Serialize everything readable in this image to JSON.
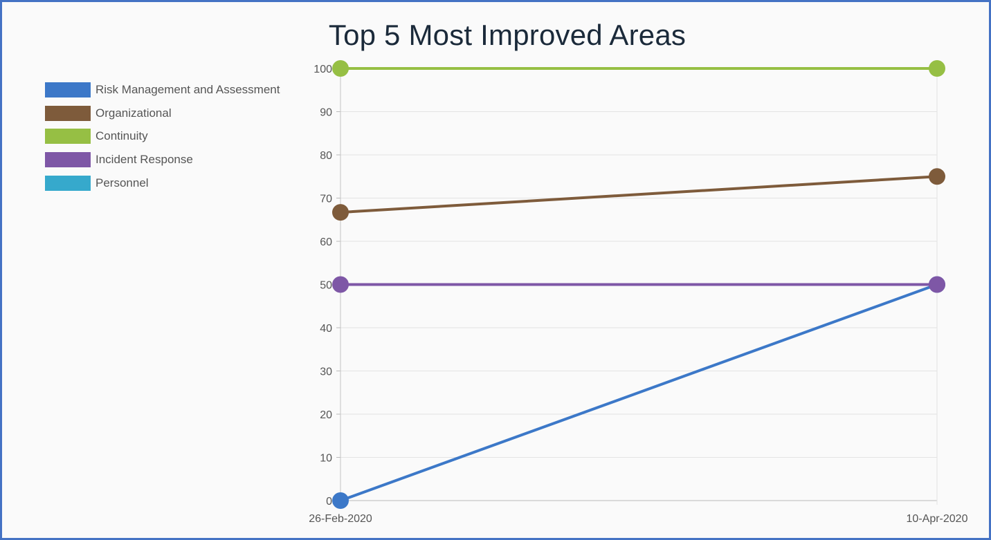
{
  "chart_data": {
    "type": "line",
    "title": "Top 5 Most Improved Areas",
    "x": [
      "26-Feb-2020",
      "10-Apr-2020"
    ],
    "xlabel": "",
    "ylabel": "",
    "ylim": [
      0,
      100
    ],
    "yticks": [
      0,
      10,
      20,
      30,
      40,
      50,
      60,
      70,
      80,
      90,
      100
    ],
    "grid": true,
    "legend_position": "left",
    "series": [
      {
        "name": "Risk Management and Assessment",
        "color": "#3c78c8",
        "values": [
          0,
          50
        ]
      },
      {
        "name": "Organizational",
        "color": "#7e5b3b",
        "values": [
          66.7,
          75
        ]
      },
      {
        "name": "Continuity",
        "color": "#96bf44",
        "values": [
          100,
          100
        ]
      },
      {
        "name": "Incident Response",
        "color": "#7e57a6",
        "values": [
          50,
          50
        ]
      },
      {
        "name": "Personnel",
        "color": "#36a9cc",
        "values": [
          null,
          null
        ]
      }
    ]
  }
}
